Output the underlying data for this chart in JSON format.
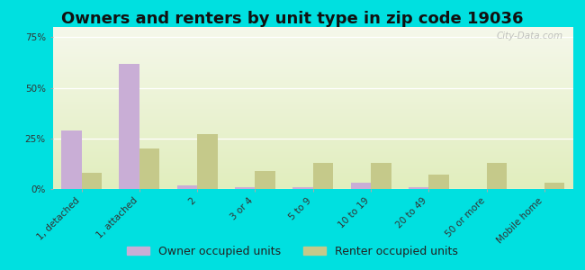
{
  "title": "Owners and renters by unit type in zip code 19036",
  "categories": [
    "1, detached",
    "1, attached",
    "2",
    "3 or 4",
    "5 to 9",
    "10 to 19",
    "20 to 49",
    "50 or more",
    "Mobile home"
  ],
  "owner_values": [
    29,
    62,
    2,
    1,
    1,
    3,
    1,
    0,
    0
  ],
  "renter_values": [
    8,
    20,
    27,
    9,
    13,
    13,
    7,
    13,
    3
  ],
  "owner_color": "#c9aed6",
  "renter_color": "#c5c98a",
  "background_color": "#00e0e0",
  "ylabel_ticks": [
    "0%",
    "25%",
    "50%",
    "75%"
  ],
  "yticks": [
    0,
    25,
    50,
    75
  ],
  "ylim": [
    0,
    80
  ],
  "title_fontsize": 13,
  "tick_fontsize": 7.5,
  "legend_fontsize": 9,
  "bar_width": 0.35,
  "watermark_text": "City-Data.com"
}
